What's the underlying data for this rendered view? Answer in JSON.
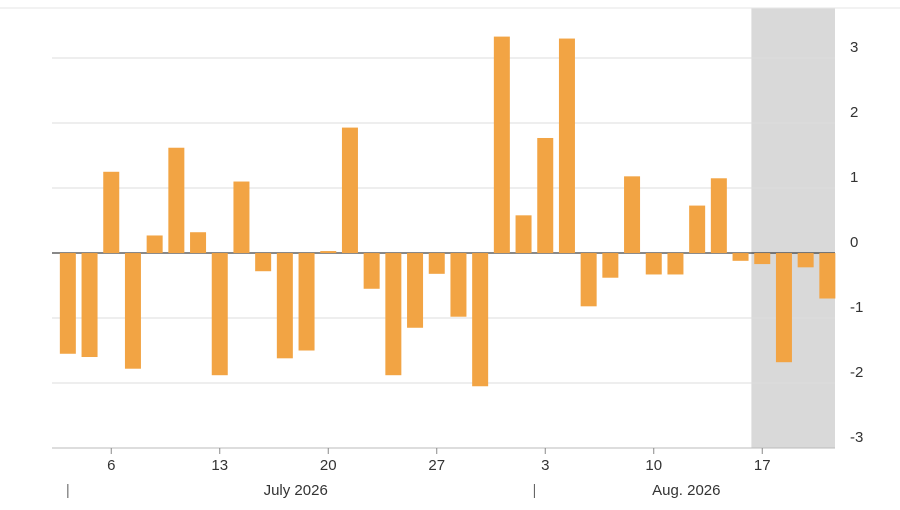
{
  "chart_data": {
    "type": "bar",
    "categories": [
      null,
      null,
      "6",
      null,
      null,
      null,
      null,
      "13",
      null,
      null,
      null,
      null,
      "20",
      null,
      null,
      null,
      null,
      "27",
      null,
      null,
      null,
      null,
      "3",
      null,
      null,
      null,
      null,
      "10",
      null,
      null,
      null,
      null,
      "17",
      null,
      null,
      null
    ],
    "values": [
      -1.55,
      -1.6,
      1.25,
      -1.78,
      0.27,
      1.62,
      0.32,
      -1.88,
      1.1,
      -0.28,
      -1.62,
      -1.5,
      0.03,
      1.93,
      -0.55,
      -1.88,
      -1.15,
      -0.32,
      -0.98,
      -2.05,
      3.33,
      0.58,
      1.77,
      3.3,
      -0.82,
      -0.38,
      1.18,
      -0.33,
      -0.33,
      0.73,
      1.15,
      -0.12,
      -0.17,
      -1.68,
      -0.22,
      -0.7
    ],
    "color": "#f2a444",
    "months": [
      {
        "label": "July 2026",
        "start": 0,
        "end": 21
      },
      {
        "label": "Aug. 2026",
        "start": 22,
        "end": 35
      }
    ],
    "highlight": {
      "from": 31,
      "to": 35,
      "color": "#d9d9d9"
    },
    "ylim": [
      -3,
      3.77
    ],
    "yticks": [
      -3,
      -2,
      -1,
      0,
      1,
      2,
      3
    ],
    "grid": true
  }
}
